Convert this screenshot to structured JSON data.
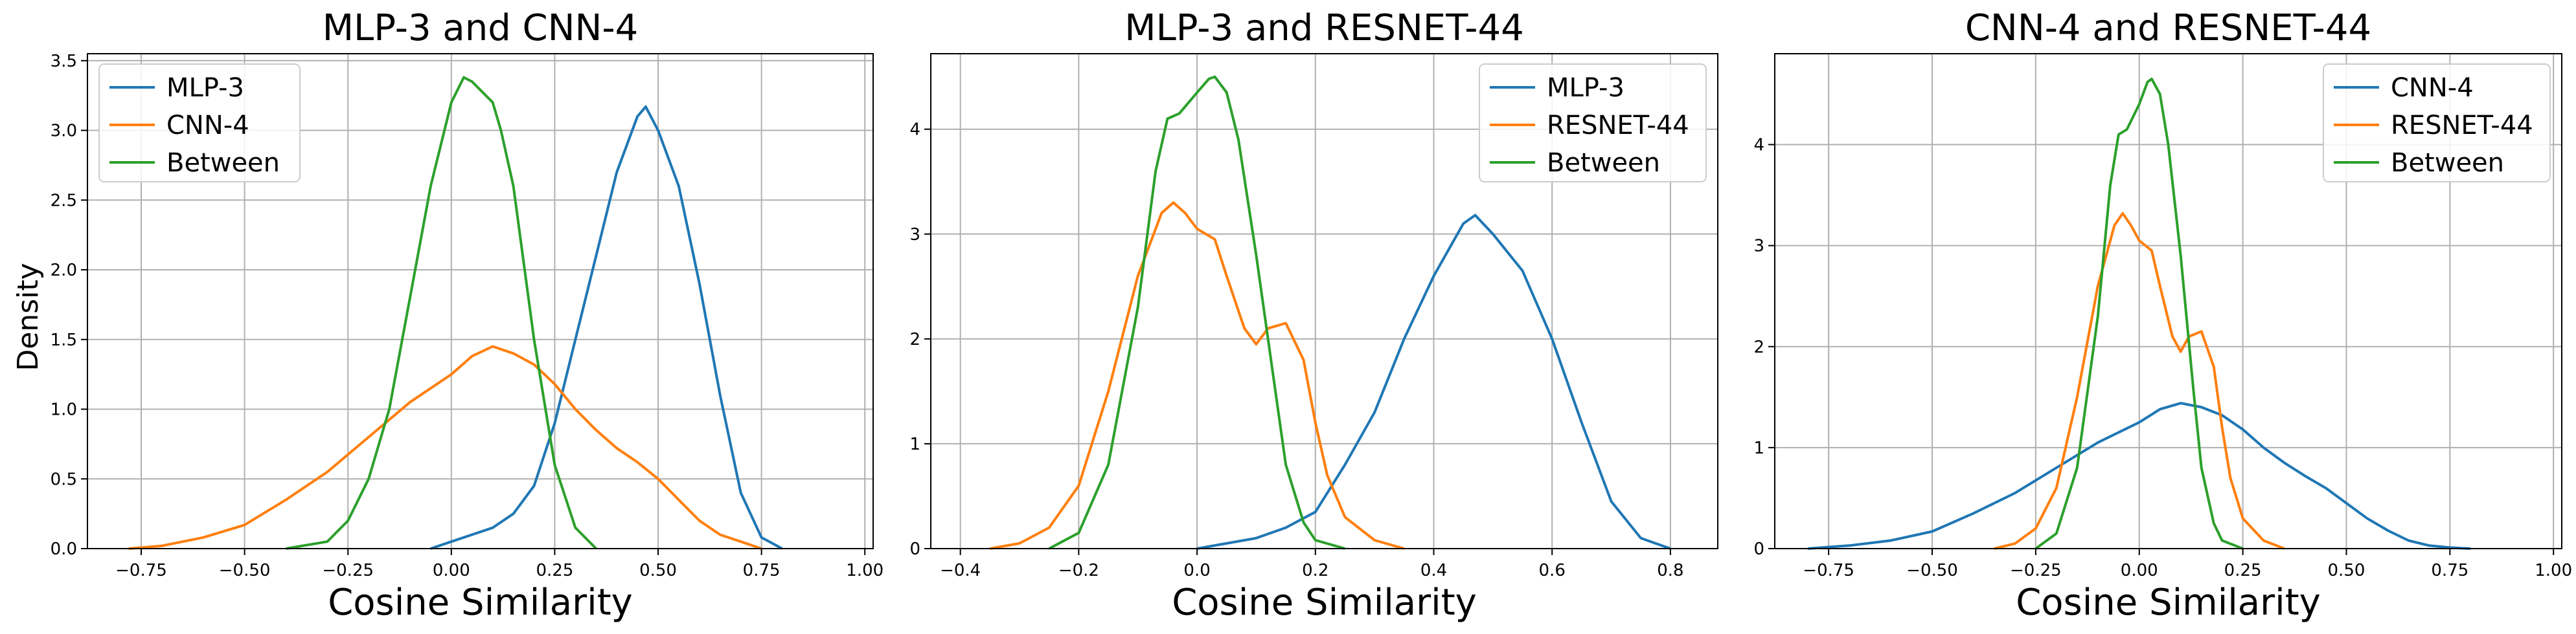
{
  "figure": {
    "ylabel": "Density"
  },
  "chart_data": [
    {
      "type": "line",
      "title": "MLP-3 and CNN-4",
      "xlabel": "Cosine Similarity",
      "ylabel": "Density",
      "xlim": [
        -0.88,
        1.02
      ],
      "ylim": [
        0,
        3.55
      ],
      "xticks": [
        -0.75,
        -0.5,
        -0.25,
        0.0,
        0.25,
        0.5,
        0.75,
        1.0
      ],
      "xtick_labels": [
        "−0.75",
        "−0.50",
        "−0.25",
        "0.00",
        "0.25",
        "0.50",
        "0.75",
        "1.00"
      ],
      "yticks": [
        0,
        0.5,
        1.0,
        1.5,
        2.0,
        2.5,
        3.0,
        3.5
      ],
      "ytick_labels": [
        "0.0",
        "0.5",
        "1.0",
        "1.5",
        "2.0",
        "2.5",
        "3.0",
        "3.5"
      ],
      "grid": true,
      "legend_position": "upper-left",
      "series": [
        {
          "name": "MLP-3",
          "color": "#1f77b4",
          "x": [
            -0.05,
            0.0,
            0.05,
            0.1,
            0.15,
            0.2,
            0.25,
            0.3,
            0.35,
            0.4,
            0.45,
            0.47,
            0.5,
            0.55,
            0.6,
            0.65,
            0.7,
            0.75,
            0.8
          ],
          "y": [
            0.0,
            0.05,
            0.1,
            0.15,
            0.25,
            0.45,
            0.9,
            1.5,
            2.1,
            2.7,
            3.1,
            3.17,
            3.0,
            2.6,
            1.9,
            1.1,
            0.4,
            0.08,
            0.0
          ]
        },
        {
          "name": "CNN-4",
          "color": "#ff7f0e",
          "x": [
            -0.78,
            -0.7,
            -0.6,
            -0.5,
            -0.4,
            -0.3,
            -0.2,
            -0.1,
            0.0,
            0.05,
            0.1,
            0.15,
            0.2,
            0.25,
            0.3,
            0.35,
            0.4,
            0.45,
            0.5,
            0.55,
            0.6,
            0.65,
            0.7,
            0.75
          ],
          "y": [
            0.0,
            0.02,
            0.08,
            0.17,
            0.35,
            0.55,
            0.8,
            1.05,
            1.25,
            1.38,
            1.45,
            1.4,
            1.32,
            1.18,
            1.0,
            0.85,
            0.72,
            0.62,
            0.5,
            0.35,
            0.2,
            0.1,
            0.05,
            0.0
          ]
        },
        {
          "name": "Between",
          "color": "#2ca02c",
          "x": [
            -0.4,
            -0.3,
            -0.25,
            -0.2,
            -0.15,
            -0.1,
            -0.05,
            0.0,
            0.03,
            0.05,
            0.1,
            0.12,
            0.15,
            0.2,
            0.25,
            0.3,
            0.35
          ],
          "y": [
            0.0,
            0.05,
            0.2,
            0.5,
            1.0,
            1.8,
            2.6,
            3.2,
            3.38,
            3.35,
            3.2,
            3.0,
            2.6,
            1.5,
            0.6,
            0.15,
            0.0
          ]
        }
      ]
    },
    {
      "type": "line",
      "title": "MLP-3 and RESNET-44",
      "xlabel": "Cosine Similarity",
      "xlim": [
        -0.45,
        0.88
      ],
      "ylim": [
        0,
        4.72
      ],
      "xticks": [
        -0.4,
        -0.2,
        0.0,
        0.2,
        0.4,
        0.6,
        0.8
      ],
      "xtick_labels": [
        "−0.4",
        "−0.2",
        "0.0",
        "0.2",
        "0.4",
        "0.6",
        "0.8"
      ],
      "yticks": [
        0,
        1,
        2,
        3,
        4
      ],
      "ytick_labels": [
        "0",
        "1",
        "2",
        "3",
        "4"
      ],
      "grid": true,
      "legend_position": "upper-right",
      "series": [
        {
          "name": "MLP-3",
          "color": "#1f77b4",
          "x": [
            0.0,
            0.05,
            0.1,
            0.15,
            0.2,
            0.25,
            0.3,
            0.35,
            0.4,
            0.45,
            0.47,
            0.5,
            0.55,
            0.6,
            0.65,
            0.7,
            0.75,
            0.8
          ],
          "y": [
            0.0,
            0.05,
            0.1,
            0.2,
            0.35,
            0.8,
            1.3,
            2.0,
            2.6,
            3.1,
            3.18,
            3.0,
            2.65,
            2.0,
            1.2,
            0.45,
            0.1,
            0.0
          ]
        },
        {
          "name": "RESNET-44",
          "color": "#ff7f0e",
          "x": [
            -0.35,
            -0.3,
            -0.25,
            -0.2,
            -0.15,
            -0.1,
            -0.06,
            -0.04,
            -0.02,
            0.0,
            0.03,
            0.05,
            0.08,
            0.1,
            0.12,
            0.15,
            0.18,
            0.2,
            0.22,
            0.25,
            0.3,
            0.35
          ],
          "y": [
            0.0,
            0.05,
            0.2,
            0.6,
            1.5,
            2.6,
            3.2,
            3.3,
            3.2,
            3.05,
            2.95,
            2.6,
            2.1,
            1.95,
            2.1,
            2.15,
            1.8,
            1.2,
            0.7,
            0.3,
            0.08,
            0.0
          ]
        },
        {
          "name": "Between",
          "color": "#2ca02c",
          "x": [
            -0.25,
            -0.2,
            -0.15,
            -0.1,
            -0.07,
            -0.05,
            -0.03,
            0.0,
            0.02,
            0.03,
            0.05,
            0.07,
            0.1,
            0.13,
            0.15,
            0.18,
            0.2,
            0.25
          ],
          "y": [
            0.0,
            0.15,
            0.8,
            2.3,
            3.6,
            4.1,
            4.15,
            4.35,
            4.48,
            4.5,
            4.35,
            3.9,
            2.8,
            1.6,
            0.8,
            0.25,
            0.08,
            0.0
          ]
        }
      ]
    },
    {
      "type": "line",
      "title": "CNN-4 and RESNET-44",
      "xlabel": "Cosine Similarity",
      "xlim": [
        -0.88,
        1.02
      ],
      "ylim": [
        0,
        4.9
      ],
      "xticks": [
        -0.75,
        -0.5,
        -0.25,
        0.0,
        0.25,
        0.5,
        0.75,
        1.0
      ],
      "xtick_labels": [
        "−0.75",
        "−0.50",
        "−0.25",
        "0.00",
        "0.25",
        "0.50",
        "0.75",
        "1.00"
      ],
      "yticks": [
        0,
        1,
        2,
        3,
        4
      ],
      "ytick_labels": [
        "0",
        "1",
        "2",
        "3",
        "4"
      ],
      "grid": true,
      "legend_position": "upper-right",
      "series": [
        {
          "name": "CNN-4",
          "color": "#1f77b4",
          "x": [
            -0.8,
            -0.7,
            -0.6,
            -0.5,
            -0.4,
            -0.3,
            -0.2,
            -0.1,
            0.0,
            0.05,
            0.1,
            0.15,
            0.2,
            0.25,
            0.3,
            0.35,
            0.4,
            0.45,
            0.5,
            0.55,
            0.6,
            0.65,
            0.7,
            0.75,
            0.8
          ],
          "y": [
            0.0,
            0.03,
            0.08,
            0.17,
            0.35,
            0.55,
            0.8,
            1.05,
            1.25,
            1.38,
            1.44,
            1.4,
            1.32,
            1.18,
            1.0,
            0.85,
            0.72,
            0.6,
            0.45,
            0.3,
            0.18,
            0.08,
            0.03,
            0.01,
            0.0
          ]
        },
        {
          "name": "RESNET-44",
          "color": "#ff7f0e",
          "x": [
            -0.35,
            -0.3,
            -0.25,
            -0.2,
            -0.15,
            -0.1,
            -0.06,
            -0.04,
            -0.02,
            0.0,
            0.03,
            0.05,
            0.08,
            0.1,
            0.12,
            0.15,
            0.18,
            0.2,
            0.22,
            0.25,
            0.3,
            0.35
          ],
          "y": [
            0.0,
            0.05,
            0.2,
            0.6,
            1.5,
            2.6,
            3.2,
            3.32,
            3.2,
            3.05,
            2.95,
            2.6,
            2.1,
            1.95,
            2.1,
            2.15,
            1.8,
            1.2,
            0.7,
            0.3,
            0.08,
            0.0
          ]
        },
        {
          "name": "Between",
          "color": "#2ca02c",
          "x": [
            -0.25,
            -0.2,
            -0.15,
            -0.1,
            -0.07,
            -0.05,
            -0.03,
            0.0,
            0.02,
            0.03,
            0.05,
            0.07,
            0.1,
            0.13,
            0.15,
            0.18,
            0.2,
            0.25
          ],
          "y": [
            0.0,
            0.15,
            0.8,
            2.3,
            3.6,
            4.1,
            4.15,
            4.4,
            4.62,
            4.65,
            4.5,
            4.0,
            2.9,
            1.6,
            0.8,
            0.25,
            0.08,
            0.0
          ]
        }
      ]
    }
  ]
}
